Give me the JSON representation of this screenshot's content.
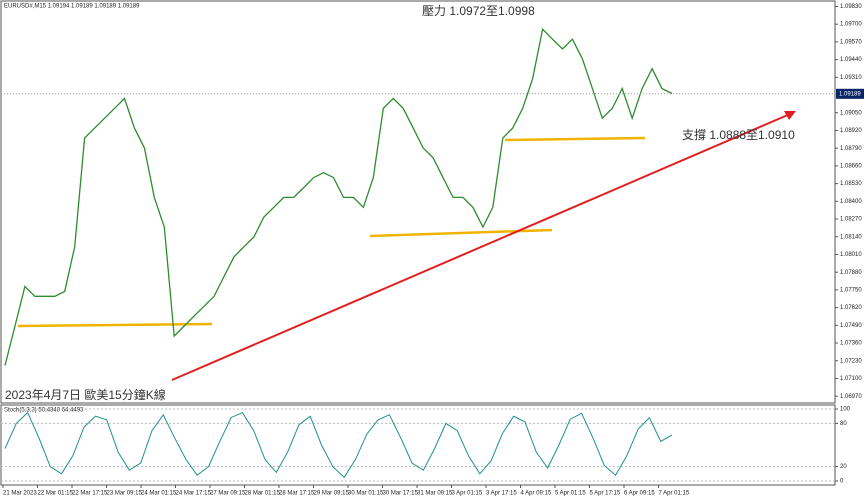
{
  "header": "EURUSD#,M15  1.09194 1.09189 1.09189 1.09189",
  "annotations": [
    "壓力 1.0972至1.0998",
    "支撐 1.0888至1.0910",
    "2023年4月7日 歐美15分鐘K線"
  ],
  "time_axis": [
    "21 Mar 2023",
    "22 Mar 01:15",
    "22 Mar 17:15",
    "23 Mar 09:15",
    "24 Mar 01:15",
    "24 Mar 17:15",
    "27 Mar 09:15",
    "28 Mar 01:15",
    "28 Mar 17:15",
    "29 Mar 09:15",
    "30 Mar 01:15",
    "30 Mar 17:15",
    "31 Mar 09:15",
    "3 Apr 01:15",
    "3 Apr 17:15",
    "4 Apr 09:15",
    "5 Apr 01:15",
    "5 Apr 17:15",
    "6 Apr 09:15",
    "7 Apr 01:15"
  ],
  "chart_data": [
    {
      "type": "line",
      "color": "#2e8b2e",
      "values": [
        1.07195,
        1.07485,
        1.07775,
        1.07703,
        1.07703,
        1.07703,
        1.07739,
        1.08066,
        1.08864,
        1.08937,
        1.0901,
        1.09082,
        1.09155,
        1.08937,
        1.08792,
        1.08429,
        1.08211,
        1.07412,
        1.07485,
        1.07558,
        1.0763,
        1.07703,
        1.07848,
        1.07993,
        1.08066,
        1.08138,
        1.08284,
        1.08356,
        1.08429,
        1.08429,
        1.08501,
        1.08574,
        1.0861,
        1.08574,
        1.08429,
        1.08429,
        1.08356,
        1.08574,
        1.09082,
        1.09155,
        1.09082,
        1.08937,
        1.08792,
        1.08719,
        1.08574,
        1.08429,
        1.08429,
        1.08356,
        1.08211,
        1.08356,
        1.08864,
        1.08937,
        1.09082,
        1.093,
        1.09663,
        1.0959,
        1.09518,
        1.0959,
        1.09445,
        1.09227,
        1.0901,
        1.09082,
        1.09227,
        1.0901,
        1.09227,
        1.09373,
        1.09227,
        1.09191
      ],
      "ylim": [
        1.0692,
        1.0987
      ],
      "yticks": [
        {
          "value": 1.0983,
          "label": "1.09830"
        },
        {
          "value": 1.097,
          "label": "1.09700"
        },
        {
          "value": 1.0957,
          "label": "1.09570"
        },
        {
          "value": 1.0944,
          "label": "1.09440"
        },
        {
          "value": 1.0931,
          "label": "1.09310"
        },
        {
          "value": 1.0905,
          "label": "1.09050"
        },
        {
          "value": 1.0892,
          "label": "1.08920"
        },
        {
          "value": 1.0879,
          "label": "1.08790"
        },
        {
          "value": 1.0866,
          "label": "1.08660"
        },
        {
          "value": 1.0853,
          "label": "1.08530"
        },
        {
          "value": 1.084,
          "label": "1.08400"
        },
        {
          "value": 1.0827,
          "label": "1.08270"
        },
        {
          "value": 1.0814,
          "label": "1.08140"
        },
        {
          "value": 1.0801,
          "label": "1.08010"
        },
        {
          "value": 1.0788,
          "label": "1.07880"
        },
        {
          "value": 1.0775,
          "label": "1.07750"
        },
        {
          "value": 1.0762,
          "label": "1.07620"
        },
        {
          "value": 1.0749,
          "label": "1.07490"
        },
        {
          "value": 1.0736,
          "label": "1.07360"
        },
        {
          "value": 1.0723,
          "label": "1.07230"
        },
        {
          "value": 1.071,
          "label": "1.07100"
        },
        {
          "value": 1.0697,
          "label": "1.06970"
        }
      ],
      "current_price": {
        "value": 1.09189,
        "label": "1.09189"
      }
    },
    {
      "type": "line",
      "title": "Stoch(5,3,3) 50.4348 64.4493",
      "color": "#1f8f8f",
      "values": [
        45,
        80,
        95,
        60,
        20,
        10,
        35,
        75,
        90,
        85,
        40,
        15,
        25,
        70,
        92,
        60,
        30,
        8,
        20,
        55,
        88,
        95,
        70,
        30,
        12,
        40,
        78,
        90,
        50,
        20,
        5,
        30,
        65,
        85,
        92,
        60,
        25,
        15,
        45,
        80,
        70,
        35,
        10,
        28,
        66,
        90,
        82,
        40,
        18,
        50,
        86,
        94,
        60,
        22,
        8,
        35,
        72,
        88,
        55,
        64
      ],
      "ylim": [
        0,
        100
      ],
      "yticks": [
        100,
        80,
        20,
        0
      ]
    }
  ]
}
